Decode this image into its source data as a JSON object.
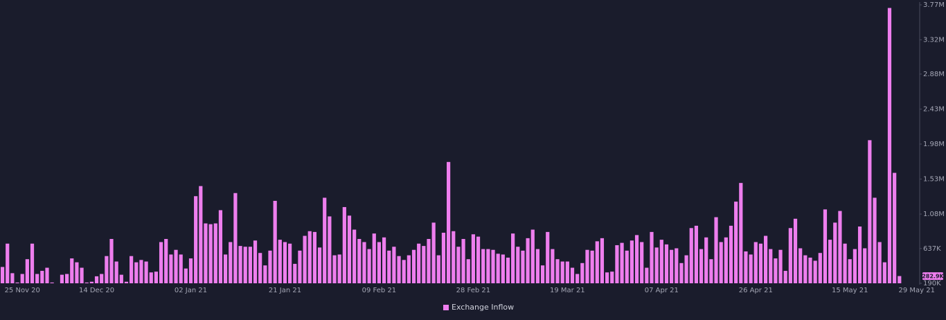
{
  "chart_data": {
    "type": "bar",
    "categories": [
      "25 Nov 20",
      null,
      null,
      null,
      null,
      null,
      null,
      null,
      null,
      null,
      null,
      null,
      null,
      null,
      null,
      null,
      null,
      null,
      null,
      "14 Dec 20",
      null,
      null,
      null,
      null,
      null,
      null,
      null,
      null,
      null,
      null,
      null,
      null,
      null,
      null,
      null,
      null,
      null,
      null,
      "02 Jan 21",
      null,
      null,
      null,
      null,
      null,
      null,
      null,
      null,
      null,
      null,
      null,
      null,
      null,
      null,
      null,
      null,
      null,
      null,
      "21 Jan 21",
      null,
      null,
      null,
      null,
      null,
      null,
      null,
      null,
      null,
      null,
      null,
      null,
      null,
      null,
      null,
      null,
      null,
      null,
      "09 Feb 21",
      null,
      null,
      null,
      null,
      null,
      null,
      null,
      null,
      null,
      null,
      null,
      null,
      null,
      null,
      null,
      null,
      null,
      null,
      "28 Feb 21",
      null,
      null,
      null,
      null,
      null,
      null,
      null,
      null,
      null,
      null,
      null,
      null,
      null,
      null,
      null,
      null,
      null,
      null,
      "19 Mar 21",
      null,
      null,
      null,
      null,
      null,
      null,
      null,
      null,
      null,
      null,
      null,
      null,
      null,
      null,
      null,
      null,
      null,
      null,
      "07 Apr 21",
      null,
      null,
      null,
      null,
      null,
      null,
      null,
      null,
      null,
      null,
      null,
      null,
      null,
      null,
      null,
      null,
      null,
      null,
      "26 Apr 21",
      null,
      null,
      null,
      null,
      null,
      null,
      null,
      null,
      null,
      null,
      null,
      null,
      null,
      null,
      null,
      null,
      null,
      null,
      "15 May 21",
      null,
      null,
      null,
      null,
      null,
      null,
      null,
      null,
      null,
      null,
      null,
      null,
      null,
      "29 May 21"
    ],
    "series": [
      {
        "name": "Exchange Inflow",
        "color": "#ee7eee",
        "values": [
          400000,
          700000,
          320000,
          200000,
          310000,
          500000,
          700000,
          310000,
          350000,
          390000,
          200000,
          190000,
          300000,
          310000,
          510000,
          460000,
          390000,
          200000,
          210000,
          280000,
          310000,
          540000,
          760000,
          470000,
          300000,
          210000,
          540000,
          460000,
          490000,
          470000,
          330000,
          340000,
          720000,
          760000,
          560000,
          620000,
          560000,
          380000,
          510000,
          1310000,
          1440000,
          960000,
          950000,
          960000,
          1130000,
          560000,
          720000,
          1350000,
          670000,
          660000,
          660000,
          740000,
          580000,
          420000,
          610000,
          1250000,
          750000,
          720000,
          700000,
          440000,
          610000,
          800000,
          860000,
          850000,
          650000,
          1290000,
          1050000,
          550000,
          560000,
          1170000,
          1060000,
          880000,
          760000,
          720000,
          630000,
          830000,
          720000,
          780000,
          610000,
          660000,
          540000,
          490000,
          550000,
          620000,
          700000,
          670000,
          760000,
          970000,
          550000,
          840000,
          1750000,
          860000,
          660000,
          760000,
          500000,
          820000,
          790000,
          630000,
          630000,
          620000,
          570000,
          560000,
          520000,
          830000,
          660000,
          610000,
          770000,
          880000,
          630000,
          420000,
          850000,
          630000,
          500000,
          470000,
          470000,
          390000,
          310000,
          450000,
          620000,
          610000,
          730000,
          770000,
          330000,
          340000,
          680000,
          710000,
          610000,
          740000,
          810000,
          720000,
          390000,
          850000,
          650000,
          750000,
          690000,
          620000,
          640000,
          450000,
          550000,
          900000,
          930000,
          630000,
          780000,
          500000,
          1040000,
          720000,
          780000,
          930000,
          1240000,
          1480000,
          600000,
          560000,
          720000,
          700000,
          800000,
          630000,
          510000,
          620000,
          350000,
          900000,
          1020000,
          640000,
          550000,
          520000,
          480000,
          580000,
          1140000,
          750000,
          970000,
          1120000,
          700000,
          500000,
          630000,
          920000,
          640000,
          2030000,
          1290000,
          720000,
          460000,
          3730000,
          1610000,
          282900,
          null,
          null,
          null,
          null
        ]
      }
    ],
    "ylim": [
      190000,
      3770000
    ],
    "yticks": [
      {
        "value": 190000,
        "label": "190K"
      },
      {
        "value": 637000,
        "label": "637K"
      },
      {
        "value": 1080000,
        "label": "1.08M"
      },
      {
        "value": 1530000,
        "label": "1.53M"
      },
      {
        "value": 1980000,
        "label": "1.98M"
      },
      {
        "value": 2430000,
        "label": "2.43M"
      },
      {
        "value": 2880000,
        "label": "2.88M"
      },
      {
        "value": 3320000,
        "label": "3.32M"
      },
      {
        "value": 3770000,
        "label": "3.77M"
      }
    ],
    "current_value": {
      "value": 282900,
      "label": "282.9K"
    },
    "legend": "bottom"
  }
}
